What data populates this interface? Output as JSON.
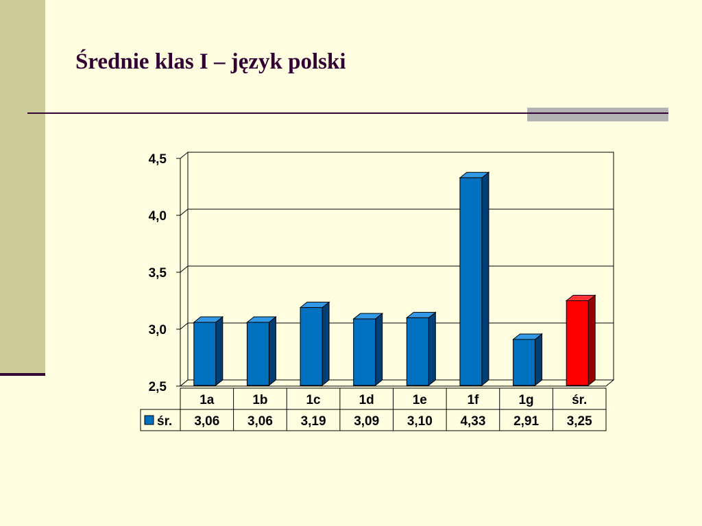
{
  "slide": {
    "title": "Średnie klas I – język polski"
  },
  "colors": {
    "background": "#FFFEE0",
    "accent_band": "#CCCC99",
    "title_color": "#330033",
    "bar_blue": "#0070C0",
    "bar_red": "#FF0000"
  },
  "chart_data": {
    "type": "bar",
    "categories": [
      "1a",
      "1b",
      "1c",
      "1d",
      "1e",
      "1f",
      "1g",
      "śr."
    ],
    "series": [
      {
        "name": "śr.",
        "values": [
          3.06,
          3.06,
          3.19,
          3.09,
          3.1,
          4.33,
          2.91,
          3.25
        ]
      }
    ],
    "value_labels": [
      "3,06",
      "3,06",
      "3,19",
      "3,09",
      "3,10",
      "4,33",
      "2,91",
      "3,25"
    ],
    "highlight_index": 7,
    "ylim": [
      2.5,
      4.5
    ],
    "yticks": [
      2.5,
      3.0,
      3.5,
      4.0,
      4.5
    ],
    "ytick_labels": [
      "2,5",
      "3,0",
      "3,5",
      "4,0",
      "4,5"
    ],
    "grid": true,
    "data_table": true,
    "three_d": true
  }
}
